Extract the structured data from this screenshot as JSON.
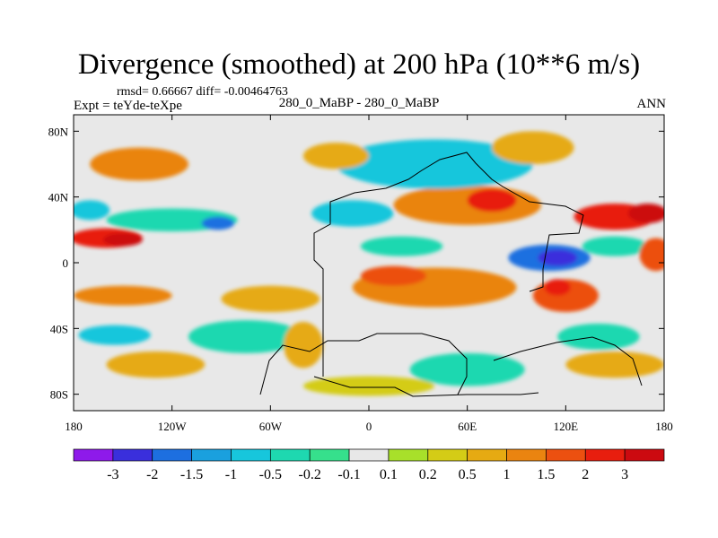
{
  "chart_data": {
    "type": "heatmap",
    "title": "Divergence (smoothed) at 200 hPa (10**6 m/s)",
    "stats_text": "rmsd= 0.66667  diff= -0.00464763",
    "left_label": "Expt = teYde-teXpe",
    "center_label": "280_0_MaBP - 280_0_MaBP",
    "right_label": "ANN",
    "x_ticks": [
      {
        "value": -180,
        "label": "180"
      },
      {
        "value": -120,
        "label": "120W"
      },
      {
        "value": -60,
        "label": "60W"
      },
      {
        "value": 0,
        "label": "0"
      },
      {
        "value": 60,
        "label": "60E"
      },
      {
        "value": 120,
        "label": "120E"
      },
      {
        "value": 180,
        "label": "180"
      }
    ],
    "y_ticks": [
      {
        "value": 80,
        "label": "80N"
      },
      {
        "value": 40,
        "label": "40N"
      },
      {
        "value": 0,
        "label": "0"
      },
      {
        "value": -40,
        "label": "40S"
      },
      {
        "value": -80,
        "label": "80S"
      }
    ],
    "xlim": [
      -180,
      180
    ],
    "ylim": [
      -90,
      90
    ],
    "colorbar": {
      "levels": [
        "-3",
        "-2",
        "-1.5",
        "-1",
        "-0.5",
        "-0.2",
        "-0.1",
        "0.1",
        "0.2",
        "0.5",
        "1",
        "1.5",
        "2",
        "3"
      ],
      "colors": [
        "#8e1aea",
        "#3a2fdc",
        "#1d6fe0",
        "#1aa0de",
        "#17c6dc",
        "#1ed8b0",
        "#36e08c",
        "#e8e8e8",
        "#a8e02a",
        "#d4cc16",
        "#e6aa12",
        "#ea8410",
        "#ec5010",
        "#e81e0e",
        "#cc0a10"
      ]
    },
    "blobs": [
      {
        "lon": -160,
        "lat": 15,
        "rx": 22,
        "ry": 6,
        "level": 13
      },
      {
        "lon": -150,
        "lat": 14,
        "rx": 12,
        "ry": 4,
        "level": 14
      },
      {
        "lon": -170,
        "lat": 32,
        "rx": 12,
        "ry": 6,
        "level": 4
      },
      {
        "lon": -120,
        "lat": 26,
        "rx": 40,
        "ry": 7,
        "level": 5
      },
      {
        "lon": -92,
        "lat": 24,
        "rx": 10,
        "ry": 4,
        "level": 2
      },
      {
        "lon": -150,
        "lat": -20,
        "rx": 30,
        "ry": 6,
        "level": 11
      },
      {
        "lon": -60,
        "lat": -22,
        "rx": 30,
        "ry": 8,
        "level": 10
      },
      {
        "lon": -75,
        "lat": -45,
        "rx": 35,
        "ry": 10,
        "level": 5
      },
      {
        "lon": -40,
        "lat": -50,
        "rx": 12,
        "ry": 14,
        "level": 10
      },
      {
        "lon": -130,
        "lat": -62,
        "rx": 30,
        "ry": 8,
        "level": 10
      },
      {
        "lon": -155,
        "lat": -44,
        "rx": 22,
        "ry": 6,
        "level": 4
      },
      {
        "lon": 40,
        "lat": -15,
        "rx": 50,
        "ry": 12,
        "level": 11
      },
      {
        "lon": 15,
        "lat": -8,
        "rx": 20,
        "ry": 6,
        "level": 12
      },
      {
        "lon": 110,
        "lat": 3,
        "rx": 25,
        "ry": 8,
        "level": 2
      },
      {
        "lon": 115,
        "lat": 3,
        "rx": 12,
        "ry": 5,
        "level": 1
      },
      {
        "lon": 120,
        "lat": -20,
        "rx": 20,
        "ry": 10,
        "level": 12
      },
      {
        "lon": 115,
        "lat": -15,
        "rx": 8,
        "ry": 5,
        "level": 13
      },
      {
        "lon": 60,
        "lat": 35,
        "rx": 45,
        "ry": 12,
        "level": 11
      },
      {
        "lon": 75,
        "lat": 38,
        "rx": 15,
        "ry": 7,
        "level": 13
      },
      {
        "lon": 150,
        "lat": 28,
        "rx": 25,
        "ry": 8,
        "level": 13
      },
      {
        "lon": 170,
        "lat": 30,
        "rx": 12,
        "ry": 6,
        "level": 14
      },
      {
        "lon": 150,
        "lat": 10,
        "rx": 20,
        "ry": 6,
        "level": 5
      },
      {
        "lon": 40,
        "lat": 60,
        "rx": 60,
        "ry": 15,
        "level": 4
      },
      {
        "lon": 100,
        "lat": 70,
        "rx": 25,
        "ry": 10,
        "level": 10
      },
      {
        "lon": -20,
        "lat": 65,
        "rx": 20,
        "ry": 8,
        "level": 10
      },
      {
        "lon": -140,
        "lat": 60,
        "rx": 30,
        "ry": 10,
        "level": 11
      },
      {
        "lon": -10,
        "lat": 30,
        "rx": 25,
        "ry": 8,
        "level": 4
      },
      {
        "lon": 20,
        "lat": 10,
        "rx": 25,
        "ry": 6,
        "level": 5
      },
      {
        "lon": 140,
        "lat": -45,
        "rx": 25,
        "ry": 8,
        "level": 5
      },
      {
        "lon": 150,
        "lat": -62,
        "rx": 30,
        "ry": 8,
        "level": 10
      },
      {
        "lon": 60,
        "lat": -65,
        "rx": 35,
        "ry": 10,
        "level": 5
      },
      {
        "lon": 0,
        "lat": -75,
        "rx": 40,
        "ry": 6,
        "level": 9
      },
      {
        "lon": 175,
        "lat": 5,
        "rx": 10,
        "ry": 10,
        "level": 12
      }
    ]
  }
}
